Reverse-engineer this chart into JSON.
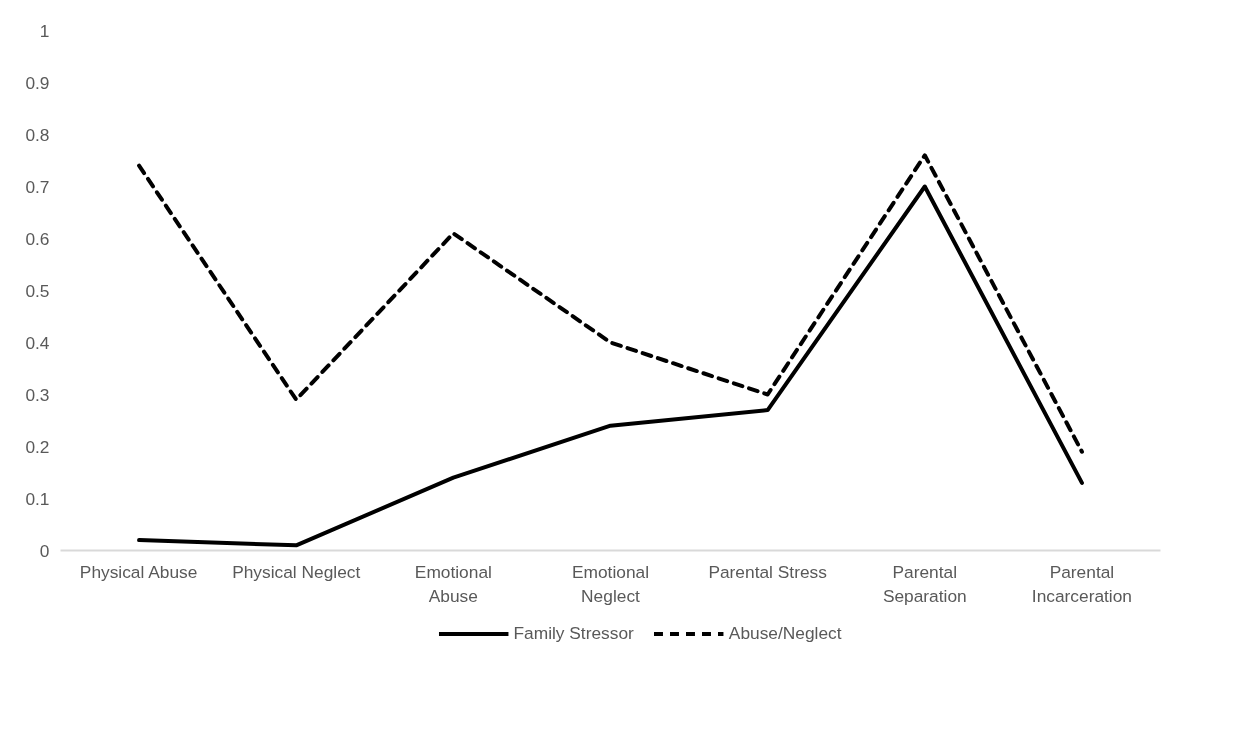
{
  "chart_data": {
    "type": "line",
    "categories": [
      "Physical Abuse",
      "Physical Neglect",
      "Emotional\nAbuse",
      "Emotional\nNeglect",
      "Parental Stress",
      "Parental\nSeparation",
      "Parental\nIncarceration"
    ],
    "series": [
      {
        "name": "Family Stressor",
        "color": "#000000",
        "line_style": "solid",
        "values": [
          0.02,
          0.01,
          0.14,
          0.24,
          0.27,
          0.7,
          0.13
        ]
      },
      {
        "name": "Abuse/Neglect",
        "color": "#000000",
        "line_style": "dashed",
        "values": [
          0.74,
          0.29,
          0.61,
          0.4,
          0.3,
          0.76,
          0.19
        ]
      }
    ],
    "ylim": [
      0,
      1
    ],
    "yticks": [
      0,
      0.1,
      0.2,
      0.3,
      0.4,
      0.5,
      0.6,
      0.7,
      0.8,
      0.9,
      1
    ],
    "grid": false,
    "legend": "bottom",
    "marker": "none"
  }
}
